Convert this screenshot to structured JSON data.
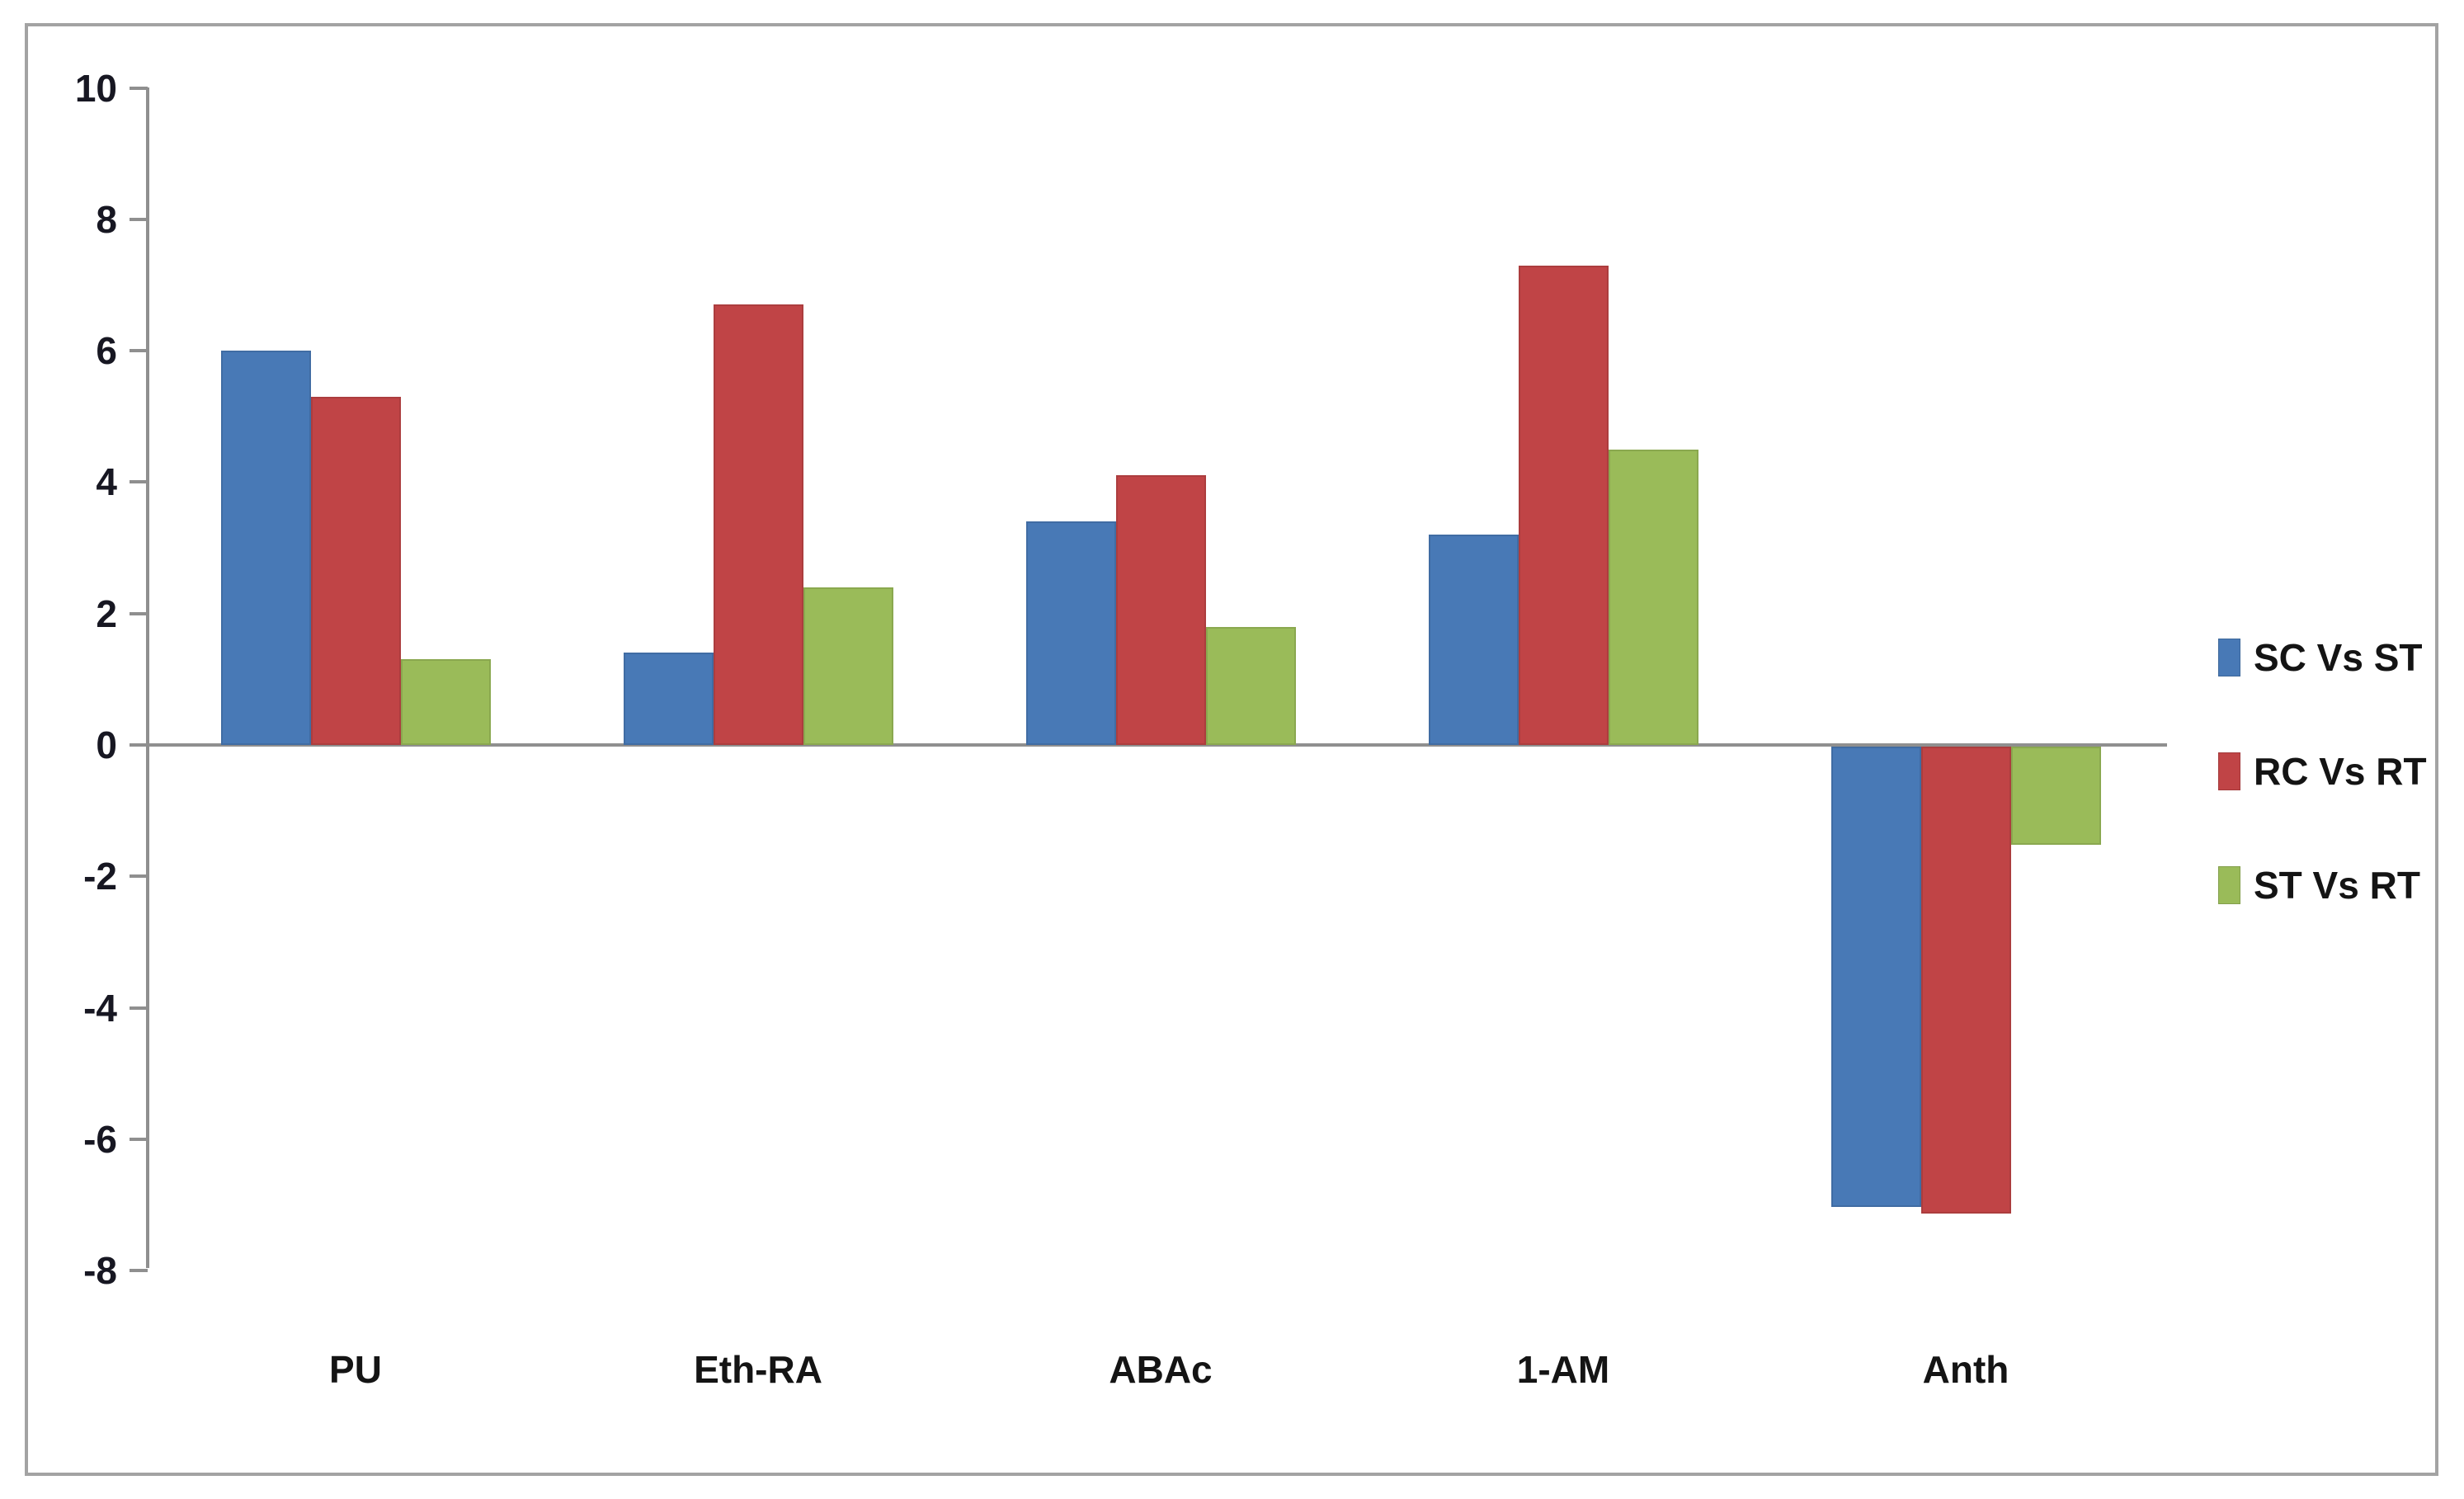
{
  "chart_data": {
    "type": "bar",
    "title": "",
    "xlabel": "",
    "ylabel": "",
    "categories": [
      "PU",
      "Eth-RA",
      "ABAc",
      "1-AM",
      "Anth"
    ],
    "series": [
      {
        "name": "SC Vs ST",
        "color": "#4879B6",
        "values": [
          6.0,
          1.4,
          3.4,
          3.2,
          -7.0
        ]
      },
      {
        "name": "RC Vs RT",
        "color": "#C04446",
        "values": [
          5.3,
          6.7,
          4.1,
          7.3,
          -7.1
        ]
      },
      {
        "name": "ST Vs RT",
        "color": "#9ABB59",
        "values": [
          1.3,
          2.4,
          1.8,
          4.5,
          -1.5
        ]
      }
    ],
    "ylim": [
      -8,
      10
    ],
    "yticks": [
      10,
      8,
      6,
      4,
      2,
      0,
      -2,
      -4,
      -6,
      -8
    ],
    "grid": false,
    "legend_position": "right",
    "axis_color": "#8f8f8f",
    "tick_label_color": "#171722"
  }
}
